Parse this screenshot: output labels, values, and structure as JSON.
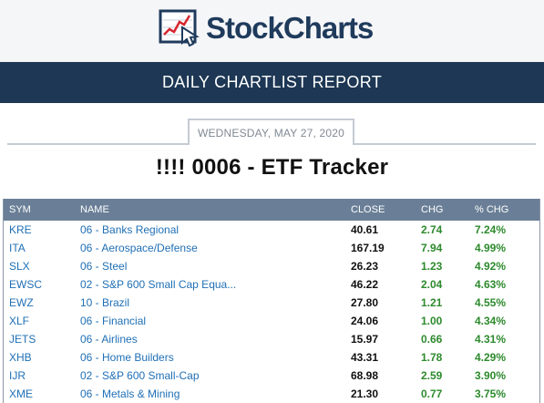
{
  "brand": {
    "name": "StockCharts"
  },
  "report": {
    "title": "DAILY CHARTLIST REPORT"
  },
  "date": "WEDNESDAY, MAY 27, 2020",
  "list_title": "!!!! 0006 - ETF Tracker",
  "table": {
    "headers": {
      "sym": "SYM",
      "name": "NAME",
      "close": "CLOSE",
      "chg": "CHG",
      "pct": "% CHG"
    },
    "rows": [
      {
        "sym": "KRE",
        "name": "06 - Banks Regional",
        "close": "40.61",
        "chg": "2.74",
        "pct": "7.24%"
      },
      {
        "sym": "ITA",
        "name": "06 - Aerospace/Defense",
        "close": "167.19",
        "chg": "7.94",
        "pct": "4.99%"
      },
      {
        "sym": "SLX",
        "name": "06 - Steel",
        "close": "26.23",
        "chg": "1.23",
        "pct": "4.92%"
      },
      {
        "sym": "EWSC",
        "name": "02 - S&P 600 Small Cap Equa...",
        "close": "46.22",
        "chg": "2.04",
        "pct": "4.63%"
      },
      {
        "sym": "EWZ",
        "name": "10 - Brazil",
        "close": "27.80",
        "chg": "1.21",
        "pct": "4.55%"
      },
      {
        "sym": "XLF",
        "name": "06 - Financial",
        "close": "24.06",
        "chg": "1.00",
        "pct": "4.34%"
      },
      {
        "sym": "JETS",
        "name": "06 - Airlines",
        "close": "15.97",
        "chg": "0.66",
        "pct": "4.31%"
      },
      {
        "sym": "XHB",
        "name": "06 - Home Builders",
        "close": "43.31",
        "chg": "1.78",
        "pct": "4.29%"
      },
      {
        "sym": "IJR",
        "name": "02 - S&P 600 Small-Cap",
        "close": "68.98",
        "chg": "2.59",
        "pct": "3.90%"
      },
      {
        "sym": "XME",
        "name": "06 - Metals & Mining",
        "close": "21.30",
        "chg": "0.77",
        "pct": "3.75%"
      }
    ]
  },
  "colors": {
    "header_bar": "#1d3754",
    "table_header": "#6a7f97",
    "link": "#1f6fb5",
    "positive": "#2d8a2d"
  }
}
